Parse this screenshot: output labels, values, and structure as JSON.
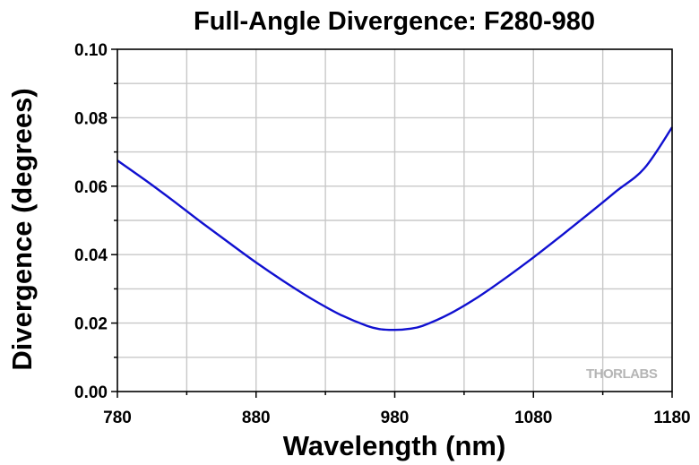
{
  "chart_data": {
    "type": "line",
    "title": "Full-Angle Divergence: F280-980",
    "xlabel": "Wavelength (nm)",
    "ylabel": "Divergence (degrees)",
    "xlim": [
      780,
      1180
    ],
    "ylim": [
      0.0,
      0.1
    ],
    "x_ticks": [
      "780",
      "880",
      "980",
      "1080",
      "1180"
    ],
    "y_ticks": [
      "0.00",
      "0.02",
      "0.04",
      "0.06",
      "0.08",
      "0.10"
    ],
    "grid": true,
    "watermark": "THORLABS",
    "series": [
      {
        "color": "#1010d0",
        "x": [
          780,
          800,
          820,
          840,
          860,
          880,
          900,
          920,
          940,
          960,
          970,
          980,
          990,
          1000,
          1020,
          1040,
          1060,
          1080,
          1100,
          1120,
          1140,
          1160,
          1180
        ],
        "y": [
          0.0675,
          0.0618,
          0.0558,
          0.0496,
          0.0436,
          0.0377,
          0.0322,
          0.0271,
          0.0226,
          0.0192,
          0.0182,
          0.018,
          0.0183,
          0.0192,
          0.0228,
          0.0276,
          0.0332,
          0.0392,
          0.0455,
          0.052,
          0.0586,
          0.0652,
          0.0772
        ]
      }
    ]
  }
}
